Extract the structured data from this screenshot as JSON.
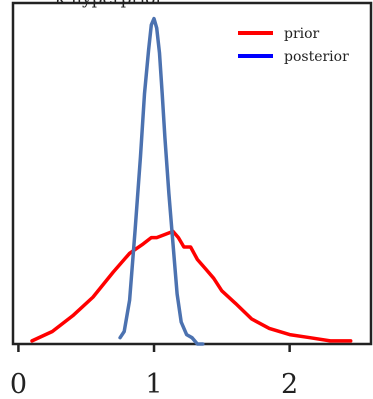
{
  "chart_data": {
    "type": "line",
    "title": "κ hyperprior",
    "xlabel": "",
    "ylabel": "",
    "xlim": [
      -0.04,
      2.6
    ],
    "ylim": [
      0,
      1.09
    ],
    "xticks": [
      0,
      1,
      2
    ],
    "xtick_labels": [
      "0",
      "1",
      "2"
    ],
    "yticks": [],
    "grid": false,
    "legend_position": "top-right",
    "series": [
      {
        "name": "prior",
        "color": "#ff0000",
        "legend_color": "#ff0000",
        "x": [
          0.1,
          0.25,
          0.4,
          0.55,
          0.7,
          0.82,
          0.92,
          0.98,
          1.02,
          1.08,
          1.14,
          1.18,
          1.22,
          1.27,
          1.32,
          1.38,
          1.44,
          1.5,
          1.6,
          1.72,
          1.85,
          2.0,
          2.15,
          2.3,
          2.45
        ],
        "y": [
          0.01,
          0.04,
          0.09,
          0.15,
          0.23,
          0.29,
          0.32,
          0.34,
          0.34,
          0.35,
          0.36,
          0.34,
          0.31,
          0.31,
          0.27,
          0.24,
          0.21,
          0.17,
          0.13,
          0.08,
          0.05,
          0.03,
          0.02,
          0.01,
          0.01
        ]
      },
      {
        "name": "posterior",
        "color": "#4c72b0",
        "legend_color": "#0000ff",
        "x": [
          0.75,
          0.78,
          0.82,
          0.86,
          0.9,
          0.93,
          0.96,
          0.98,
          1.0,
          1.02,
          1.04,
          1.06,
          1.08,
          1.11,
          1.14,
          1.17,
          1.2,
          1.24,
          1.28,
          1.32,
          1.36
        ],
        "y": [
          0.02,
          0.04,
          0.14,
          0.36,
          0.6,
          0.8,
          0.94,
          1.02,
          1.04,
          1.01,
          0.93,
          0.8,
          0.66,
          0.48,
          0.32,
          0.16,
          0.07,
          0.03,
          0.02,
          0.0,
          0.0
        ]
      }
    ]
  }
}
